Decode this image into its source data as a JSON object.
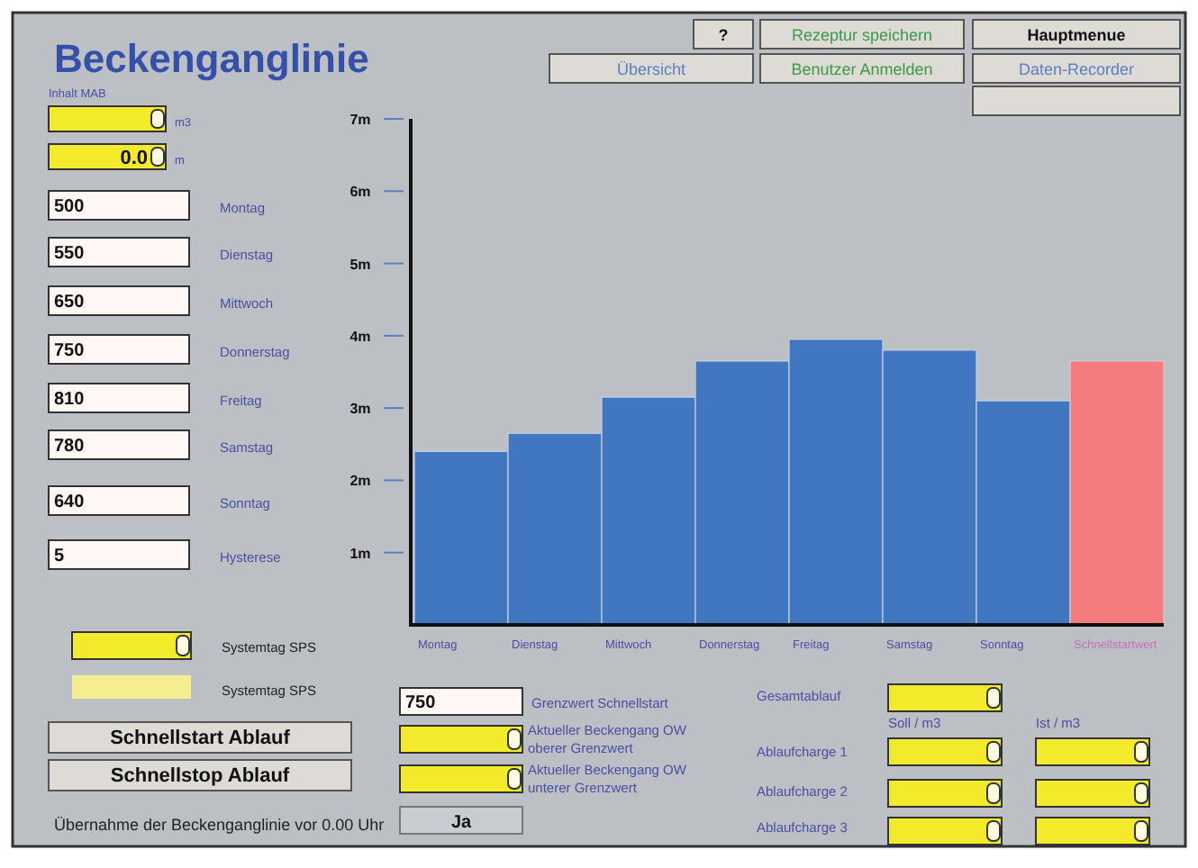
{
  "chart_data": {
    "type": "bar",
    "title": "Beckenganglinie",
    "categories": [
      "Montag",
      "Dienstag",
      "Mittwoch",
      "Donnerstag",
      "Freitag",
      "Samstag",
      "Sonntag",
      "Schnellstartwert"
    ],
    "values": [
      2.4,
      2.65,
      3.15,
      3.65,
      3.95,
      3.8,
      3.1,
      3.65
    ],
    "colors": [
      "#4077c0",
      "#4077c0",
      "#4077c0",
      "#4077c0",
      "#4077c0",
      "#4077c0",
      "#4077c0",
      "#f47c7c"
    ],
    "ylim": [
      0,
      7
    ],
    "yticks": [
      {
        "value": 1,
        "label": "1m"
      },
      {
        "value": 2,
        "label": "2m"
      },
      {
        "value": 3,
        "label": "3m"
      },
      {
        "value": 4,
        "label": "4m"
      },
      {
        "value": 5,
        "label": "5m"
      },
      {
        "value": 6,
        "label": "6m"
      },
      {
        "value": 7,
        "label": "7m"
      }
    ],
    "grid": false,
    "annotations": [
      "?",
      "Rezeptur speichern",
      "Hauptmenue",
      "Übersicht",
      "Benutzer Anmelden",
      "Daten-Recorder",
      "Inhalt MAB",
      "m3",
      "0.0",
      "m",
      "500",
      "Montag",
      "550",
      "Dienstag",
      "650",
      "Mittwoch",
      "750",
      "Donnerstag",
      "810",
      "Freitag",
      "780",
      "Samstag",
      "640",
      "Sonntag",
      "5",
      "Hysterese",
      "Systemtag SPS",
      "Systemtag SPS",
      "Schnellstart Ablauf",
      "Schnellstop Ablauf",
      "Übernahme der Beckenganglinie vor 0.00 Uhr",
      "Ja",
      "750",
      "Grenzwert Schnellstart",
      "Aktueller Beckengang OW",
      "oberer Grenzwert",
      "Aktueller Beckengang OW",
      "unterer Grenzwert",
      "Gesamtablauf",
      "Soll / m3",
      "Ist / m3",
      "Ablaufcharge 1",
      "Ablaufcharge 2",
      "Ablaufcharge 3"
    ]
  }
}
